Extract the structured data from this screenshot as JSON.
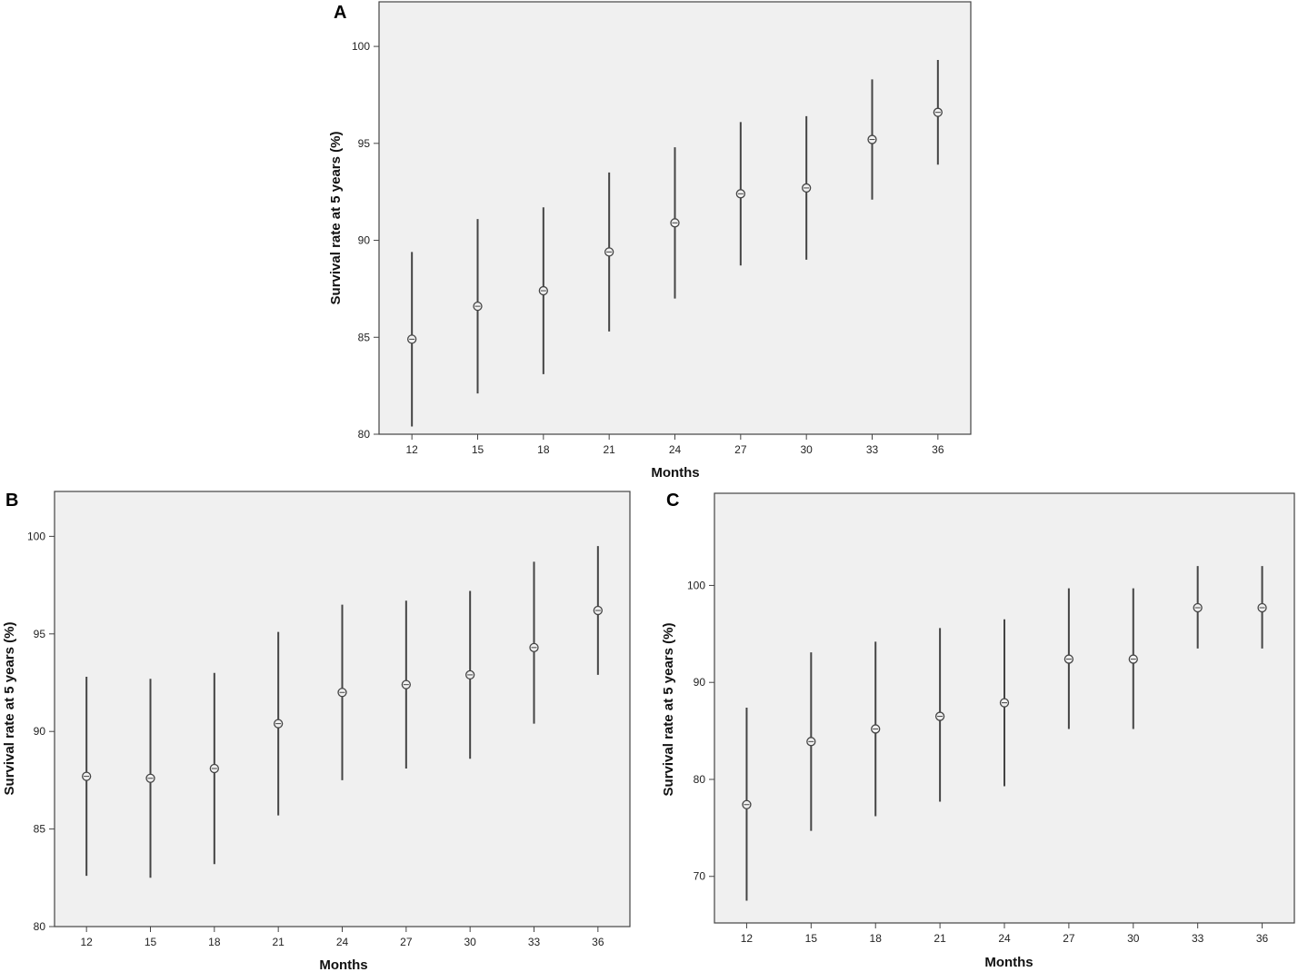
{
  "chart_data": [
    {
      "panel": "A",
      "type": "scatter",
      "xlabel": "Months",
      "ylabel": "Survival rate at 5 years (%)",
      "ylim": [
        80,
        102.3
      ],
      "yticks": [
        80,
        85,
        90,
        95,
        100
      ],
      "x": [
        12,
        15,
        18,
        21,
        24,
        27,
        30,
        33,
        36
      ],
      "mean": [
        84.9,
        86.6,
        87.4,
        89.4,
        90.9,
        92.4,
        92.7,
        95.2,
        96.6
      ],
      "lower": [
        80.4,
        82.1,
        83.1,
        85.3,
        87.0,
        88.7,
        89.0,
        92.1,
        93.9
      ],
      "upper": [
        89.4,
        91.1,
        91.7,
        93.5,
        94.8,
        96.1,
        96.4,
        98.3,
        99.3
      ]
    },
    {
      "panel": "B",
      "type": "scatter",
      "xlabel": "Months",
      "ylabel": "Survival rate at 5 years (%)",
      "ylim": [
        80,
        102.3
      ],
      "yticks": [
        80,
        85,
        90,
        95,
        100
      ],
      "x": [
        12,
        15,
        18,
        21,
        24,
        27,
        30,
        33,
        36
      ],
      "mean": [
        87.7,
        87.6,
        88.1,
        90.4,
        92.0,
        92.4,
        92.9,
        94.3,
        96.2
      ],
      "lower": [
        82.6,
        82.5,
        83.2,
        85.7,
        87.5,
        88.1,
        88.6,
        90.4,
        92.9
      ],
      "upper": [
        92.8,
        92.7,
        93.0,
        95.1,
        96.5,
        96.7,
        97.2,
        98.7,
        99.5
      ]
    },
    {
      "panel": "C",
      "type": "scatter",
      "xlabel": "Months",
      "ylabel": "Survival rate at 5 years (%)",
      "ylim": [
        65.2,
        109.5
      ],
      "yticks": [
        70,
        80,
        90,
        100
      ],
      "x": [
        12,
        15,
        18,
        21,
        24,
        27,
        30,
        33,
        36
      ],
      "mean": [
        77.4,
        83.9,
        85.2,
        86.5,
        87.9,
        92.4,
        92.4,
        97.7,
        97.7
      ],
      "lower": [
        67.5,
        74.7,
        76.2,
        77.7,
        79.3,
        85.2,
        85.2,
        93.5,
        93.5
      ],
      "upper": [
        87.4,
        93.1,
        94.2,
        95.6,
        96.5,
        99.7,
        99.7,
        102.0,
        102.0
      ]
    }
  ]
}
